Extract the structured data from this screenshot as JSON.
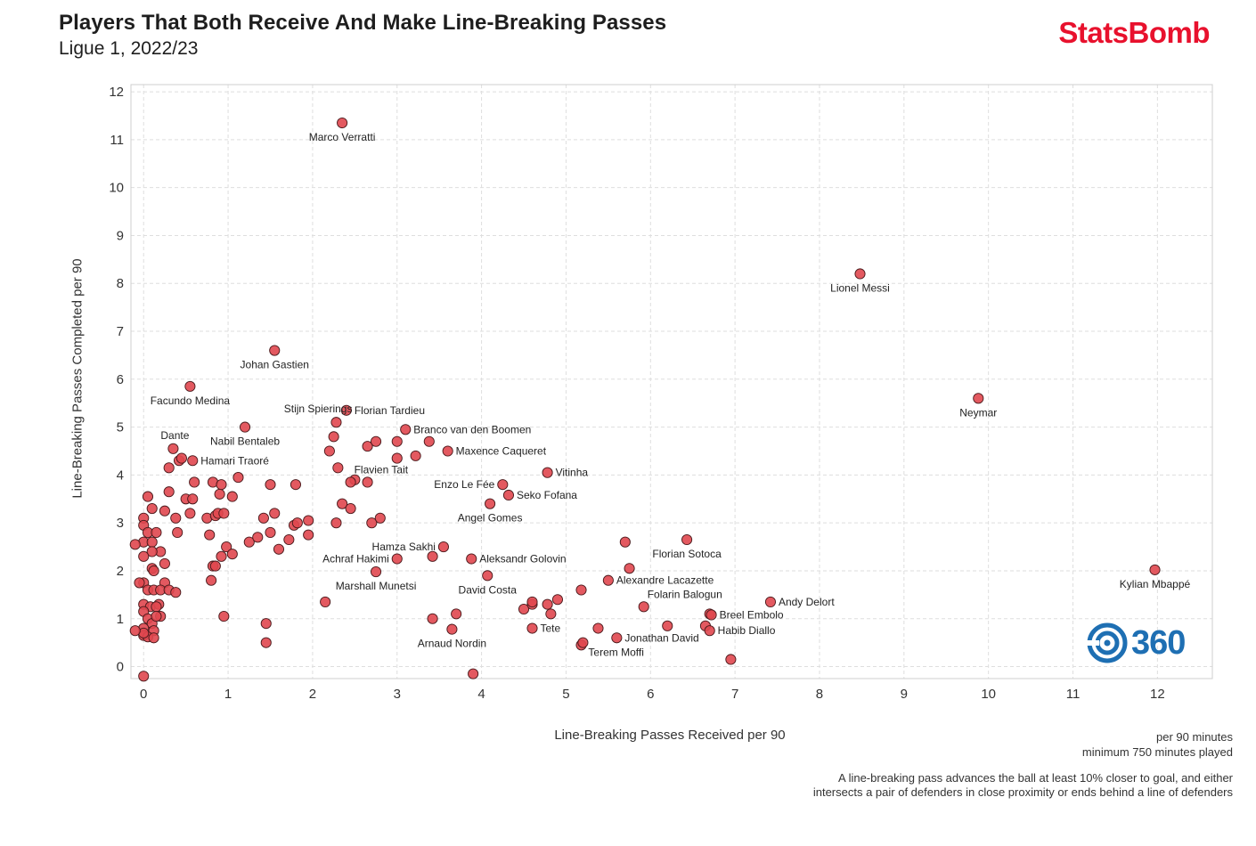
{
  "header": {
    "title": "Players That Both Receive And Make Line-Breaking Passes",
    "subtitle": "Ligue 1, 2022/23",
    "brand": "StatsBomb"
  },
  "badge": {
    "text": "360",
    "icon": "target-swirl-icon",
    "color": "#1e6fb3"
  },
  "notes": {
    "line1": "per 90 minutes",
    "line2": "minimum 750 minutes played",
    "line3": "A line-breaking pass advances the ball at least 10% closer to goal, and either",
    "line4": "intersects a pair of defenders in close proximity or ends behind a line of defenders"
  },
  "colors": {
    "point": "#e0474f",
    "point_stroke": "#4a1a1c",
    "brand": "#e8112d",
    "grid": "#dedede"
  },
  "chart_data": {
    "type": "scatter",
    "xlabel": "Line-Breaking Passes Received per 90",
    "ylabel": "Line-Breaking Passes Completed per 90",
    "xlim": [
      -0.15,
      12.65
    ],
    "ylim": [
      -0.25,
      12.15
    ],
    "xticks": [
      0,
      1,
      2,
      3,
      4,
      5,
      6,
      7,
      8,
      9,
      10,
      11,
      12
    ],
    "yticks": [
      0,
      1,
      2,
      3,
      4,
      5,
      6,
      7,
      8,
      9,
      10,
      11,
      12
    ],
    "grid": true,
    "labeled_points": [
      {
        "name": "Marco Verratti",
        "x": 2.35,
        "y": 11.35,
        "label_pos": "below"
      },
      {
        "name": "Lionel Messi",
        "x": 8.48,
        "y": 8.2,
        "label_pos": "below"
      },
      {
        "name": "Neymar",
        "x": 9.88,
        "y": 5.6,
        "label_pos": "below"
      },
      {
        "name": "Johan Gastien",
        "x": 1.55,
        "y": 6.6,
        "label_pos": "below"
      },
      {
        "name": "Facundo Medina",
        "x": 0.55,
        "y": 5.85,
        "label_pos": "below"
      },
      {
        "name": "Stijn Spierings",
        "x": 2.28,
        "y": 5.1,
        "label_pos": "above"
      },
      {
        "name": "Florian Tardieu",
        "x": 2.4,
        "y": 5.35,
        "label_pos": "right"
      },
      {
        "name": "Branco van den Boomen",
        "x": 3.1,
        "y": 4.95,
        "label_pos": "right"
      },
      {
        "name": "Dante",
        "x": 0.35,
        "y": 4.55,
        "label_pos": "above"
      },
      {
        "name": "Nabil Bentaleb",
        "x": 1.2,
        "y": 5.0,
        "label_pos": "below"
      },
      {
        "name": "Hamari Traoré",
        "x": 0.58,
        "y": 4.3,
        "label_pos": "right"
      },
      {
        "name": "Maxence Caqueret",
        "x": 3.6,
        "y": 4.5,
        "label_pos": "right"
      },
      {
        "name": "Flavien Tait",
        "x": 2.45,
        "y": 3.85,
        "label_pos": "above-right"
      },
      {
        "name": "Vitinha",
        "x": 4.78,
        "y": 4.05,
        "label_pos": "right"
      },
      {
        "name": "Enzo Le Fée",
        "x": 4.25,
        "y": 3.8,
        "label_pos": "left"
      },
      {
        "name": "Seko Fofana",
        "x": 4.32,
        "y": 3.58,
        "label_pos": "right"
      },
      {
        "name": "Angel Gomes",
        "x": 4.1,
        "y": 3.4,
        "label_pos": "below"
      },
      {
        "name": "Hamza Sakhi",
        "x": 3.55,
        "y": 2.5,
        "label_pos": "left"
      },
      {
        "name": "Achraf Hakimi",
        "x": 3.0,
        "y": 2.25,
        "label_pos": "left"
      },
      {
        "name": "Aleksandr Golovin",
        "x": 3.88,
        "y": 2.25,
        "label_pos": "right"
      },
      {
        "name": "Marshall Munetsi",
        "x": 2.75,
        "y": 1.98,
        "label_pos": "below"
      },
      {
        "name": "David Costa",
        "x": 4.07,
        "y": 1.9,
        "label_pos": "below"
      },
      {
        "name": "Florian Sotoca",
        "x": 6.43,
        "y": 2.65,
        "label_pos": "below"
      },
      {
        "name": "Alexandre Lacazette",
        "x": 5.5,
        "y": 1.8,
        "label_pos": "right"
      },
      {
        "name": "Folarin Balogun",
        "x": 5.92,
        "y": 1.25,
        "label_pos": "above-right"
      },
      {
        "name": "Andy Delort",
        "x": 7.42,
        "y": 1.35,
        "label_pos": "right"
      },
      {
        "name": "Breel Embolo",
        "x": 6.72,
        "y": 1.08,
        "label_pos": "right"
      },
      {
        "name": "Habib Diallo",
        "x": 6.7,
        "y": 0.75,
        "label_pos": "right"
      },
      {
        "name": "Kylian Mbappé",
        "x": 11.97,
        "y": 2.02,
        "label_pos": "below"
      },
      {
        "name": "Tete",
        "x": 4.6,
        "y": 0.8,
        "label_pos": "right"
      },
      {
        "name": "Arnaud Nordin",
        "x": 3.65,
        "y": 0.78,
        "label_pos": "below"
      },
      {
        "name": "Jonathan David",
        "x": 5.6,
        "y": 0.6,
        "label_pos": "right"
      },
      {
        "name": "Terem Moffi",
        "x": 5.2,
        "y": 0.5,
        "label_pos": "below-right"
      }
    ],
    "other_points": [
      [
        0.1,
        3.3
      ],
      [
        0.05,
        3.55
      ],
      [
        0.0,
        3.1
      ],
      [
        0.0,
        2.95
      ],
      [
        0.05,
        2.8
      ],
      [
        0.15,
        2.8
      ],
      [
        0.0,
        2.6
      ],
      [
        0.1,
        2.6
      ],
      [
        0.2,
        2.4
      ],
      [
        0.1,
        2.4
      ],
      [
        0.0,
        2.3
      ],
      [
        0.25,
        2.15
      ],
      [
        0.1,
        2.05
      ],
      [
        0.12,
        2.0
      ],
      [
        0.25,
        1.75
      ],
      [
        0.0,
        1.75
      ],
      [
        0.05,
        1.6
      ],
      [
        0.12,
        1.6
      ],
      [
        0.2,
        1.6
      ],
      [
        0.3,
        1.6
      ],
      [
        0.38,
        1.55
      ],
      [
        0.0,
        1.3
      ],
      [
        0.08,
        1.25
      ],
      [
        0.18,
        1.3
      ],
      [
        0.15,
        1.25
      ],
      [
        0.0,
        1.15
      ],
      [
        0.05,
        1.0
      ],
      [
        0.2,
        1.05
      ],
      [
        0.1,
        0.9
      ],
      [
        0.15,
        1.05
      ],
      [
        0.0,
        0.8
      ],
      [
        0.12,
        0.75
      ],
      [
        0.0,
        0.65
      ],
      [
        0.05,
        0.62
      ],
      [
        0.12,
        0.6
      ],
      [
        0.0,
        0.7
      ],
      [
        0.0,
        -0.2
      ],
      [
        -0.1,
        2.55
      ],
      [
        -0.05,
        1.75
      ],
      [
        -0.1,
        0.75
      ],
      [
        0.3,
        3.65
      ],
      [
        0.25,
        3.25
      ],
      [
        0.38,
        3.1
      ],
      [
        0.4,
        2.8
      ],
      [
        0.5,
        3.5
      ],
      [
        0.58,
        3.5
      ],
      [
        0.55,
        3.2
      ],
      [
        0.6,
        3.85
      ],
      [
        0.42,
        4.3
      ],
      [
        0.45,
        4.35
      ],
      [
        0.3,
        4.15
      ],
      [
        0.75,
        3.1
      ],
      [
        0.82,
        3.85
      ],
      [
        0.85,
        3.15
      ],
      [
        0.88,
        3.2
      ],
      [
        0.9,
        3.6
      ],
      [
        0.92,
        3.8
      ],
      [
        0.95,
        3.2
      ],
      [
        1.05,
        3.55
      ],
      [
        1.12,
        3.95
      ],
      [
        0.78,
        2.75
      ],
      [
        0.82,
        2.1
      ],
      [
        0.85,
        2.1
      ],
      [
        0.92,
        2.3
      ],
      [
        0.98,
        2.5
      ],
      [
        1.05,
        2.35
      ],
      [
        0.8,
        1.8
      ],
      [
        0.95,
        1.05
      ],
      [
        1.25,
        2.6
      ],
      [
        1.35,
        2.7
      ],
      [
        1.42,
        3.1
      ],
      [
        1.5,
        2.8
      ],
      [
        1.55,
        3.2
      ],
      [
        1.6,
        2.45
      ],
      [
        1.72,
        2.65
      ],
      [
        1.78,
        2.95
      ],
      [
        1.82,
        3.0
      ],
      [
        1.95,
        3.05
      ],
      [
        1.95,
        2.75
      ],
      [
        1.5,
        3.8
      ],
      [
        1.8,
        3.8
      ],
      [
        1.45,
        0.9
      ],
      [
        1.45,
        0.5
      ],
      [
        2.2,
        4.5
      ],
      [
        2.25,
        4.8
      ],
      [
        2.3,
        4.15
      ],
      [
        2.35,
        3.4
      ],
      [
        2.45,
        3.3
      ],
      [
        2.28,
        3.0
      ],
      [
        2.5,
        3.9
      ],
      [
        2.65,
        3.85
      ],
      [
        2.65,
        4.6
      ],
      [
        2.75,
        4.7
      ],
      [
        2.7,
        3.0
      ],
      [
        2.8,
        3.1
      ],
      [
        3.0,
        4.7
      ],
      [
        3.0,
        4.35
      ],
      [
        3.22,
        4.4
      ],
      [
        3.38,
        4.7
      ],
      [
        2.15,
        1.35
      ],
      [
        3.42,
        2.3
      ],
      [
        3.42,
        1.0
      ],
      [
        3.7,
        1.1
      ],
      [
        3.9,
        -0.15
      ],
      [
        4.5,
        1.2
      ],
      [
        4.6,
        1.3
      ],
      [
        4.6,
        1.35
      ],
      [
        4.78,
        1.3
      ],
      [
        4.82,
        1.1
      ],
      [
        4.9,
        1.4
      ],
      [
        5.18,
        1.6
      ],
      [
        5.18,
        0.45
      ],
      [
        5.38,
        0.8
      ],
      [
        5.7,
        2.6
      ],
      [
        5.75,
        2.05
      ],
      [
        6.2,
        0.85
      ],
      [
        6.65,
        0.85
      ],
      [
        6.7,
        1.1
      ],
      [
        6.95,
        0.15
      ]
    ]
  }
}
